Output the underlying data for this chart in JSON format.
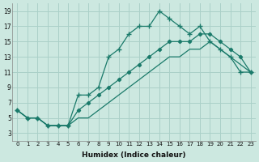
{
  "xlabel": "Humidex (Indice chaleur)",
  "bg_color": "#cce8e0",
  "grid_color": "#aad0c8",
  "line_color": "#1a7a6a",
  "xlim": [
    -0.5,
    23.5
  ],
  "ylim": [
    2,
    20
  ],
  "yticks": [
    3,
    5,
    7,
    9,
    11,
    13,
    15,
    17,
    19
  ],
  "xticks": [
    0,
    1,
    2,
    3,
    4,
    5,
    6,
    7,
    8,
    9,
    10,
    11,
    12,
    13,
    14,
    15,
    16,
    17,
    18,
    19,
    20,
    21,
    22,
    23
  ],
  "series1_x": [
    0,
    1,
    2,
    3,
    4,
    5,
    6,
    7,
    8,
    9,
    10,
    11,
    12,
    13,
    14,
    15,
    16,
    17,
    18,
    19,
    20,
    21,
    22,
    23
  ],
  "series1_y": [
    6,
    5,
    5,
    4,
    4,
    4,
    8,
    8,
    9,
    13,
    14,
    16,
    17,
    17,
    19,
    18,
    17,
    16,
    17,
    15,
    14,
    13,
    11,
    11
  ],
  "series2_x": [
    0,
    1,
    2,
    3,
    4,
    5,
    6,
    7,
    8,
    9,
    10,
    11,
    12,
    13,
    14,
    15,
    16,
    17,
    18,
    19,
    20,
    21,
    22,
    23
  ],
  "series2_y": [
    6,
    5,
    5,
    4,
    4,
    4,
    6,
    7,
    8,
    9,
    10,
    11,
    12,
    13,
    14,
    15,
    15,
    15,
    16,
    16,
    15,
    14,
    13,
    11
  ],
  "series3_x": [
    0,
    1,
    2,
    3,
    4,
    5,
    6,
    7,
    8,
    9,
    10,
    11,
    12,
    13,
    14,
    15,
    16,
    17,
    18,
    19,
    20,
    21,
    22,
    23
  ],
  "series3_y": [
    6,
    5,
    5,
    4,
    4,
    4,
    5,
    5,
    6,
    7,
    8,
    9,
    10,
    11,
    12,
    13,
    13,
    14,
    14,
    15,
    14,
    13,
    12,
    11
  ]
}
